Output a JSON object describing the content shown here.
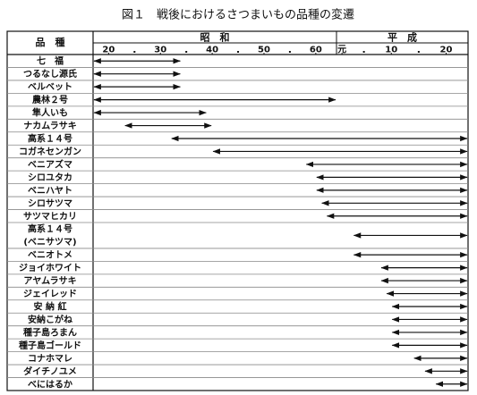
{
  "chart_data": {
    "type": "range",
    "title": "図１　戦後におけるさつまいもの品種の変遷",
    "label_header": "品　種",
    "axes": [
      {
        "name": "昭　和",
        "xlim": [
          17,
          64
        ],
        "xticks": [
          20,
          30,
          40,
          50,
          60
        ],
        "minor_xticks": [
          25,
          35,
          45,
          55
        ]
      },
      {
        "name": "平　成",
        "xlim": [
          0,
          24
        ],
        "xticks": [
          {
            "value": 1,
            "label": "元"
          },
          10,
          20
        ],
        "minor_xticks": [
          5,
          15
        ]
      }
    ],
    "rows": [
      {
        "label": "七　福",
        "showa": [
          17,
          34
        ],
        "heisei": null
      },
      {
        "label": "つるなし源氏",
        "showa": [
          17,
          34
        ],
        "heisei": null
      },
      {
        "label": "ベルベット",
        "showa": [
          17,
          34
        ],
        "heisei": null
      },
      {
        "label": "農林２号",
        "showa": [
          17,
          64
        ],
        "heisei": null
      },
      {
        "label": "隼人いも",
        "showa": [
          17,
          39
        ],
        "heisei": null
      },
      {
        "label": "ナカムラサキ",
        "showa": [
          23,
          40
        ],
        "heisei": null
      },
      {
        "label": "高系１４号",
        "showa": [
          32,
          64
        ],
        "heisei": [
          0,
          24
        ]
      },
      {
        "label": "コガネセンガン",
        "showa": [
          40,
          64
        ],
        "heisei": [
          0,
          24
        ]
      },
      {
        "label": "ベニアズマ",
        "showa": [
          58,
          64
        ],
        "heisei": [
          0,
          24
        ]
      },
      {
        "label": "シロユタカ",
        "showa": [
          60,
          64
        ],
        "heisei": [
          0,
          24
        ]
      },
      {
        "label": "ベニハヤト",
        "showa": [
          60,
          64
        ],
        "heisei": [
          0,
          24
        ]
      },
      {
        "label": "シロサツマ",
        "showa": [
          61,
          64
        ],
        "heisei": [
          0,
          24
        ]
      },
      {
        "label": "サツマヒカリ",
        "showa": [
          62,
          64
        ],
        "heisei": [
          0,
          24
        ]
      },
      {
        "label": [
          "高系１４号",
          "(ベニサツマ)"
        ],
        "showa": null,
        "heisei": [
          3,
          24
        ]
      },
      {
        "label": "ベニオトメ",
        "showa": null,
        "heisei": [
          3,
          24
        ]
      },
      {
        "label": "ジョイホワイト",
        "showa": null,
        "heisei": [
          8,
          24
        ]
      },
      {
        "label": "アヤムラサキ",
        "showa": null,
        "heisei": [
          8,
          24
        ]
      },
      {
        "label": "ジェイレッド",
        "showa": null,
        "heisei": [
          9,
          24
        ]
      },
      {
        "label": "安 納 紅",
        "showa": null,
        "heisei": [
          10,
          24
        ]
      },
      {
        "label": "安納こがね",
        "showa": null,
        "heisei": [
          10,
          24
        ]
      },
      {
        "label": "種子島ろまん",
        "showa": null,
        "heisei": [
          10,
          24
        ]
      },
      {
        "label": "種子島ゴールド",
        "showa": null,
        "heisei": [
          10,
          24
        ]
      },
      {
        "label": "コナホマレ",
        "showa": null,
        "heisei": [
          14,
          24
        ]
      },
      {
        "label": "ダイチノユメ",
        "showa": null,
        "heisei": [
          16,
          24
        ]
      },
      {
        "label": "べにはるか",
        "showa": null,
        "heisei": [
          18,
          24
        ]
      }
    ]
  }
}
